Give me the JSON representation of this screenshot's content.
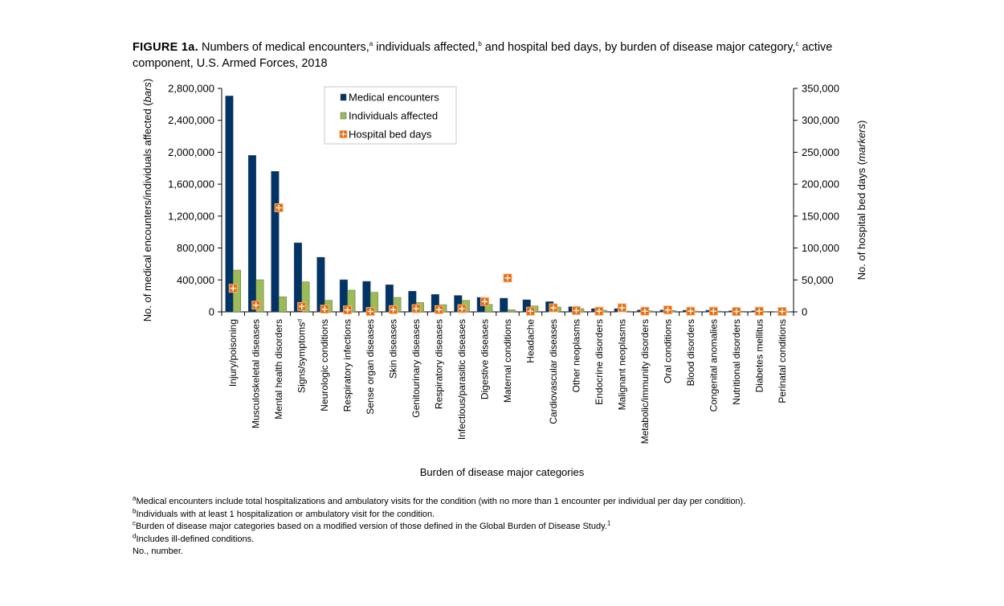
{
  "title": {
    "figure_label": "FIGURE 1a.",
    "part1": "Numbers of medical encounters,",
    "sup_a": "a",
    "part2": " individuals affected,",
    "sup_b": "b",
    "part3": " and hospital bed days, by burden of disease major category,",
    "sup_c": "c",
    "part4": " active component, U.S. Armed Forces, 2018"
  },
  "footnotes": [
    {
      "mark": "a",
      "text": "Medical encounters include total hospitalizations and ambulatory visits for the condition (with no more than 1 encounter per individual per day per condition)."
    },
    {
      "mark": "b",
      "text": "Individuals with at least 1 hospitalization or ambulatory visit for the condition."
    },
    {
      "mark": "c",
      "text": "Burden of disease major categories based on a modified version of those defined in the Global Burden of Disease Study.",
      "ref": "1"
    },
    {
      "mark": "d",
      "text": "Includes ill-defined conditions."
    },
    {
      "mark": "",
      "text": "No., number."
    }
  ],
  "chart_data": {
    "type": "bar",
    "xlabel": "Burden of disease major categories",
    "ylabel": "No. of medical encounters/individuals affected (",
    "ylabel_italic": "bars",
    "ylabel_end": ")",
    "y2label": "No. of hospital bed days (",
    "y2label_italic": "markers",
    "y2label_end": ")",
    "ylim": [
      0,
      2800000
    ],
    "y2lim": [
      0,
      350000
    ],
    "yticks": [
      "0",
      "400,000",
      "800,000",
      "1,200,000",
      "1,600,000",
      "2,000,000",
      "2,400,000",
      "2,800,000"
    ],
    "y2ticks": [
      "0",
      "50,000",
      "100,000",
      "150,000",
      "200,000",
      "250,000",
      "300,000",
      "350,000"
    ],
    "legend_position": "top-center",
    "grid": false,
    "categories": [
      "Injury/poisoning",
      "Musculoskeletal diseases",
      "Mental health disorders",
      "Signs/symptoms",
      "Neurologic conditions",
      "Respiratory infections",
      "Sense organ diseases",
      "Skin diseases",
      "Genitourinary diseases",
      "Respiratory diseases",
      "Infectious/parasitic diseases",
      "Digestive diseases",
      "Maternal conditions",
      "Headache",
      "Cardiovascular diseases",
      "Other neoplasms",
      "Endocrine disorders",
      "Malignant neoplasms",
      "Metabolic/immunity disorders",
      "Oral conditions",
      "Blood disorders",
      "Congenital anomalies",
      "Nutritional disorders",
      "Diabetes mellitus",
      "Perinatal conditions"
    ],
    "category_superscripts": {
      "Signs/symptoms": "d"
    },
    "series": [
      {
        "name": "Medical encounters",
        "color": "#003366",
        "axis": "left",
        "kind": "bar",
        "values": [
          2705000,
          1960000,
          1760000,
          865000,
          684000,
          402000,
          382000,
          339000,
          258000,
          218000,
          205000,
          181000,
          171000,
          151000,
          127000,
          64000,
          40000,
          40000,
          23000,
          23000,
          20000,
          20000,
          13000,
          13000,
          3000
        ]
      },
      {
        "name": "Individuals affected",
        "color": "#9BBB59",
        "axis": "left",
        "kind": "bar",
        "values": [
          523000,
          402000,
          188000,
          376000,
          144000,
          272000,
          245000,
          181000,
          117000,
          90000,
          144000,
          94000,
          27000,
          74000,
          60000,
          40000,
          20000,
          10000,
          13000,
          17000,
          10000,
          10000,
          7000,
          5000,
          1000
        ]
      },
      {
        "name": "Hospital bed days",
        "color": "#E46C0A",
        "axis": "right",
        "kind": "marker",
        "values": [
          36900,
          10500,
          163000,
          8400,
          4200,
          3000,
          500,
          3400,
          5000,
          3400,
          5000,
          16000,
          53000,
          1000,
          6300,
          2000,
          1000,
          6300,
          1000,
          3000,
          1000,
          1000,
          500,
          1000,
          500
        ]
      }
    ]
  }
}
